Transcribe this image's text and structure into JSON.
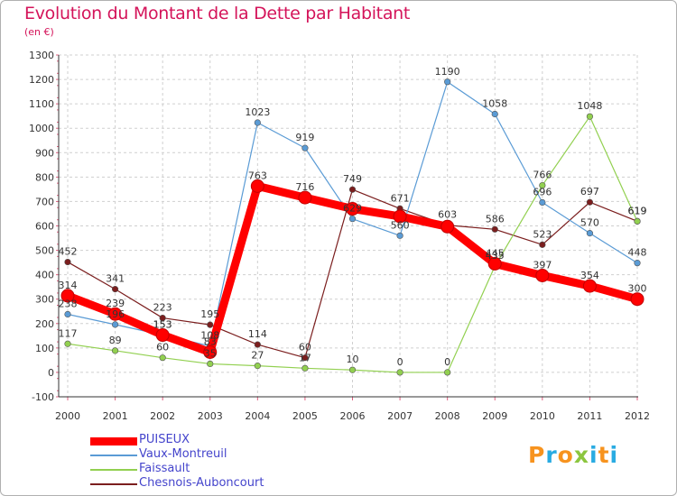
{
  "title": "Evolution du Montant de la Dette par Habitant",
  "subtitle": "(en €)",
  "logo": {
    "letters": [
      "P",
      "r",
      "o",
      "x",
      "i",
      "t",
      "i"
    ],
    "colors": [
      "#f7931e",
      "#29abe2",
      "#f7931e",
      "#8cc63f",
      "#29abe2",
      "#f7931e",
      "#29abe2"
    ]
  },
  "chart_data": {
    "type": "line",
    "title": "Evolution du Montant de la Dette par Habitant",
    "subtitle": "(en €)",
    "x": [
      "2000",
      "2001",
      "2002",
      "2003",
      "2004",
      "2005",
      "2006",
      "2007",
      "2008",
      "2009",
      "2010",
      "2011",
      "2012"
    ],
    "yticks": [
      "-100",
      "0",
      "100",
      "200",
      "300",
      "400",
      "500",
      "600",
      "700",
      "800",
      "900",
      "1000",
      "1100",
      "1200",
      "1300"
    ],
    "ylim": [
      -100,
      1300
    ],
    "grid": "y-dashed",
    "legend": "bottom-left",
    "series": [
      {
        "name": "PUISEUX",
        "color": "#ff0000",
        "values": [
          314,
          239,
          153,
          83,
          763,
          716,
          670,
          639,
          597,
          445,
          397,
          354,
          300
        ],
        "labels": [
          "314",
          "239",
          "153",
          "83",
          "763",
          "716",
          "",
          "",
          "",
          "445",
          "397",
          "354",
          "300"
        ]
      },
      {
        "name": "Vaux-Montreuil",
        "color": "#5a9bd5",
        "values": [
          238,
          196,
          153,
          108,
          1023,
          919,
          629,
          560,
          1190,
          1058,
          696,
          570,
          448
        ],
        "labels": [
          "238",
          "196",
          "153",
          "108",
          "1023",
          "919",
          "629",
          "560",
          "1190",
          "1058",
          "696",
          "570",
          "448"
        ]
      },
      {
        "name": "Faissault",
        "color": "#92d050",
        "values": [
          117,
          89,
          60,
          35,
          27,
          17,
          10,
          0,
          0,
          435,
          766,
          1048,
          619
        ],
        "labels": [
          "117",
          "89",
          "60",
          "35",
          "27",
          "17",
          "10",
          "0",
          "0",
          "435",
          "766",
          "1048",
          "619"
        ]
      },
      {
        "name": "Chesnois-Auboncourt",
        "color": "#7b1e1e",
        "values": [
          452,
          341,
          223,
          195,
          114,
          60,
          749,
          671,
          603,
          586,
          523,
          697,
          619
        ],
        "labels": [
          "452",
          "341",
          "223",
          "195",
          "114",
          "60",
          "749",
          "671",
          "603",
          "586",
          "523",
          "697",
          "619"
        ]
      }
    ]
  }
}
